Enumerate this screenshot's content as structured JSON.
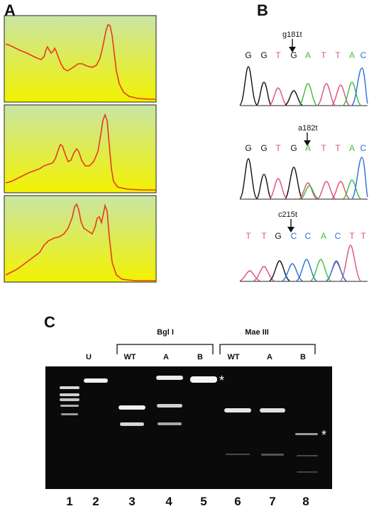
{
  "panels": {
    "a": {
      "letter": "A"
    },
    "b": {
      "letter": "B"
    },
    "c": {
      "letter": "C"
    }
  },
  "colors": {
    "grad_top": "#c9e5a4",
    "grad_bottom": "#f3f200",
    "trace": "#e83a1e",
    "base_G": "#111111",
    "base_T": "#e0507a",
    "base_A": "#3bbf3b",
    "base_C": "#2a6de0",
    "gel_bg": "#0a0a0a"
  },
  "sequences": [
    {
      "mutation": "g181t",
      "bases": [
        "G",
        "G",
        "T",
        "G",
        "A",
        "T",
        "T",
        "A",
        "C"
      ]
    },
    {
      "mutation": "a182t",
      "bases": [
        "G",
        "G",
        "T",
        "G",
        "A",
        "T",
        "T",
        "A",
        "C"
      ]
    },
    {
      "mutation": "c215t",
      "bases": [
        "T",
        "T",
        "G",
        "C",
        "C",
        "A",
        "C",
        "T",
        "T"
      ]
    }
  ],
  "gel": {
    "top_labels": {
      "u": "U",
      "bgl": "Bgl I",
      "mae": "Mae III"
    },
    "sub_labels": [
      "WT",
      "A",
      "B",
      "WT",
      "A",
      "B"
    ],
    "lanes": [
      "1",
      "2",
      "3",
      "4",
      "5",
      "6",
      "7",
      "8"
    ],
    "star": "*"
  }
}
